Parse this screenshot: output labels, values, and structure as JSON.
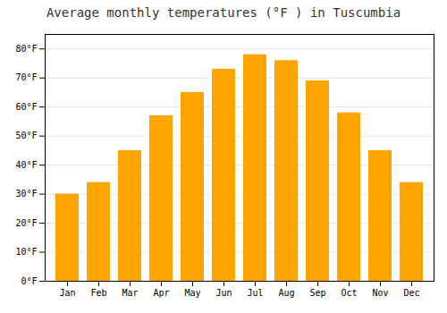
{
  "chart_data": {
    "type": "bar",
    "title": "Average monthly temperatures (°F ) in Tuscumbia",
    "categories": [
      "Jan",
      "Feb",
      "Mar",
      "Apr",
      "May",
      "Jun",
      "Jul",
      "Aug",
      "Sep",
      "Oct",
      "Nov",
      "Dec"
    ],
    "values": [
      30,
      34,
      45,
      57,
      65,
      73,
      78,
      76,
      69,
      58,
      45,
      34
    ],
    "color": "#FFA500",
    "ylim": [
      0,
      85
    ],
    "yticks": [
      {
        "value": 0,
        "label": "0°F"
      },
      {
        "value": 10,
        "label": "10°F"
      },
      {
        "value": 20,
        "label": "20°F"
      },
      {
        "value": 30,
        "label": "30°F"
      },
      {
        "value": 40,
        "label": "40°F"
      },
      {
        "value": 50,
        "label": "50°F"
      },
      {
        "value": 60,
        "label": "60°F"
      },
      {
        "value": 70,
        "label": "70°F"
      },
      {
        "value": 80,
        "label": "80°F"
      }
    ],
    "grid": true
  }
}
